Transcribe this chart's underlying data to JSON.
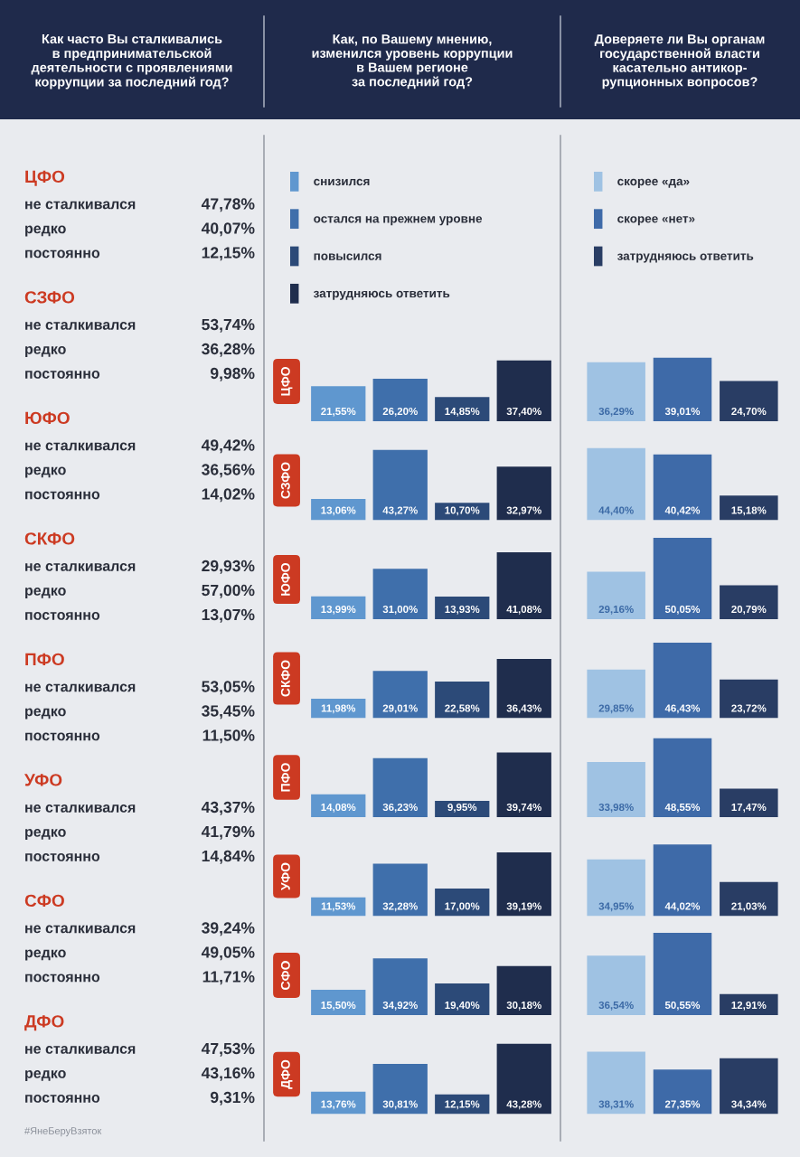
{
  "chart_data": [
    {
      "type": "other",
      "title": "Как часто Вы сталкивались\nв предпринимательской\nдеятельности с проявлениями\nкоррупции за последний год?",
      "categories": [
        "не сталкивался",
        "редко",
        "постоянно"
      ],
      "series": [
        {
          "name": "ЦФО",
          "values": [
            47.78,
            40.07,
            12.15
          ],
          "value_labels": [
            "47,78%",
            "40,07%",
            "12,15%"
          ]
        },
        {
          "name": "СЗФО",
          "values": [
            53.74,
            36.28,
            9.98
          ],
          "value_labels": [
            "53,74%",
            "36,28%",
            "9,98%"
          ]
        },
        {
          "name": "ЮФО",
          "values": [
            49.42,
            36.56,
            14.02
          ],
          "value_labels": [
            "49,42%",
            "36,56%",
            "14,02%"
          ]
        },
        {
          "name": "СКФО",
          "values": [
            29.93,
            57.0,
            13.07
          ],
          "value_labels": [
            "29,93%",
            "57,00%",
            "13,07%"
          ]
        },
        {
          "name": "ПФО",
          "values": [
            53.05,
            35.45,
            11.5
          ],
          "value_labels": [
            "53,05%",
            "35,45%",
            "11,50%"
          ]
        },
        {
          "name": "УФО",
          "values": [
            43.37,
            41.79,
            14.84
          ],
          "value_labels": [
            "43,37%",
            "41,79%",
            "14,84%"
          ]
        },
        {
          "name": "СФО",
          "values": [
            39.24,
            49.05,
            11.71
          ],
          "value_labels": [
            "39,24%",
            "49,05%",
            "11,71%"
          ]
        },
        {
          "name": "ДФО",
          "values": [
            47.53,
            43.16,
            9.31
          ],
          "value_labels": [
            "47,53%",
            "43,16%",
            "9,31%"
          ]
        }
      ],
      "annotations": [
        "#ЯнеБеруВзяток"
      ]
    },
    {
      "type": "bar",
      "title": "Как, по Вашему мнению,\nизменился уровень коррупции\nв Вашем регионе\nза последний год?",
      "legend": "top left",
      "tick_labels": false,
      "ylabel": "ЦФО",
      "categories": [
        null
      ],
      "series": [
        {
          "name": "снизился",
          "color": "#5f97cf",
          "values": [
            21.55
          ],
          "value_labels": [
            "21,55%"
          ]
        },
        {
          "name": "остался на прежнем уровне",
          "color": "#3f6fab",
          "values": [
            26.2
          ],
          "value_labels": [
            "26,20%"
          ]
        },
        {
          "name": "повысился",
          "color": "#2c4a78",
          "values": [
            14.85
          ],
          "value_labels": [
            "14,85%"
          ]
        },
        {
          "name": "затрудняюсь ответить",
          "color": "#1f2d4d",
          "values": [
            37.4
          ],
          "value_labels": [
            "37,40%"
          ]
        }
      ]
    },
    {
      "type": "bar",
      "tick_labels": false,
      "ylabel": "СЗФО",
      "categories": [
        null
      ],
      "series": [
        {
          "color": "#5f97cf",
          "values": [
            13.06
          ],
          "value_labels": [
            "13,06%"
          ]
        },
        {
          "color": "#3f6fab",
          "values": [
            43.27
          ],
          "value_labels": [
            "43,27%"
          ]
        },
        {
          "color": "#2c4a78",
          "values": [
            10.7
          ],
          "value_labels": [
            "10,70%"
          ]
        },
        {
          "color": "#1f2d4d",
          "values": [
            32.97
          ],
          "value_labels": [
            "32,97%"
          ]
        }
      ]
    },
    {
      "type": "bar",
      "tick_labels": false,
      "ylabel": "ЮФО",
      "categories": [
        null
      ],
      "series": [
        {
          "color": "#5f97cf",
          "values": [
            13.99
          ],
          "value_labels": [
            "13,99%"
          ]
        },
        {
          "color": "#3f6fab",
          "values": [
            31.0
          ],
          "value_labels": [
            "31,00%"
          ]
        },
        {
          "color": "#2c4a78",
          "values": [
            13.93
          ],
          "value_labels": [
            "13,93%"
          ]
        },
        {
          "color": "#1f2d4d",
          "values": [
            41.08
          ],
          "value_labels": [
            "41,08%"
          ]
        }
      ]
    },
    {
      "type": "bar",
      "tick_labels": false,
      "ylabel": "СКФО",
      "categories": [
        null
      ],
      "series": [
        {
          "color": "#5f97cf",
          "values": [
            11.98
          ],
          "value_labels": [
            "11,98%"
          ]
        },
        {
          "color": "#3f6fab",
          "values": [
            29.01
          ],
          "value_labels": [
            "29,01%"
          ]
        },
        {
          "color": "#2c4a78",
          "values": [
            22.58
          ],
          "value_labels": [
            "22,58%"
          ]
        },
        {
          "color": "#1f2d4d",
          "values": [
            36.43
          ],
          "value_labels": [
            "36,43%"
          ]
        }
      ]
    },
    {
      "type": "bar",
      "tick_labels": false,
      "ylabel": "ПФО",
      "categories": [
        null
      ],
      "series": [
        {
          "color": "#5f97cf",
          "values": [
            14.08
          ],
          "value_labels": [
            "14,08%"
          ]
        },
        {
          "color": "#3f6fab",
          "values": [
            36.23
          ],
          "value_labels": [
            "36,23%"
          ]
        },
        {
          "color": "#2c4a78",
          "values": [
            9.95
          ],
          "value_labels": [
            "9,95%"
          ]
        },
        {
          "color": "#1f2d4d",
          "values": [
            39.74
          ],
          "value_labels": [
            "39,74%"
          ]
        }
      ]
    },
    {
      "type": "bar",
      "tick_labels": false,
      "ylabel": "УФО",
      "categories": [
        null
      ],
      "series": [
        {
          "color": "#5f97cf",
          "values": [
            11.53
          ],
          "value_labels": [
            "11,53%"
          ]
        },
        {
          "color": "#3f6fab",
          "values": [
            32.28
          ],
          "value_labels": [
            "32,28%"
          ]
        },
        {
          "color": "#2c4a78",
          "values": [
            17.0
          ],
          "value_labels": [
            "17,00%"
          ]
        },
        {
          "color": "#1f2d4d",
          "values": [
            39.19
          ],
          "value_labels": [
            "39,19%"
          ]
        }
      ]
    },
    {
      "type": "bar",
      "tick_labels": false,
      "ylabel": "СФО",
      "categories": [
        null
      ],
      "series": [
        {
          "color": "#5f97cf",
          "values": [
            15.5
          ],
          "value_labels": [
            "15,50%"
          ]
        },
        {
          "color": "#3f6fab",
          "values": [
            34.92
          ],
          "value_labels": [
            "34,92%"
          ]
        },
        {
          "color": "#2c4a78",
          "values": [
            19.4
          ],
          "value_labels": [
            "19,40%"
          ]
        },
        {
          "color": "#1f2d4d",
          "values": [
            30.18
          ],
          "value_labels": [
            "30,18%"
          ]
        }
      ]
    },
    {
      "type": "bar",
      "tick_labels": false,
      "ylabel": "ДФО",
      "categories": [
        null
      ],
      "series": [
        {
          "color": "#5f97cf",
          "values": [
            13.76
          ],
          "value_labels": [
            "13,76%"
          ]
        },
        {
          "color": "#3f6fab",
          "values": [
            30.81
          ],
          "value_labels": [
            "30,81%"
          ]
        },
        {
          "color": "#2c4a78",
          "values": [
            12.15
          ],
          "value_labels": [
            "12,15%"
          ]
        },
        {
          "color": "#1f2d4d",
          "values": [
            43.28
          ],
          "value_labels": [
            "43,28%"
          ]
        }
      ]
    },
    {
      "type": "bar",
      "title": "Доверяете ли Вы органам\nгосударственной власти\nкасательно антикор-\nрупционных вопросов?",
      "legend": "top left",
      "tick_labels": false,
      "categories": [
        null
      ],
      "series": [
        {
          "name": "скорее «да»",
          "color": "#9fc2e3",
          "values": [
            36.29
          ],
          "value_labels": [
            "36,29%"
          ]
        },
        {
          "name": "скорее «нет»",
          "color": "#3e6aa8",
          "values": [
            39.01
          ],
          "value_labels": [
            "39,01%"
          ]
        },
        {
          "name": "затрудняюсь ответить",
          "color": "#293d64",
          "values": [
            24.7
          ],
          "value_labels": [
            "24,70%"
          ]
        }
      ]
    },
    {
      "type": "bar",
      "tick_labels": false,
      "categories": [
        null
      ],
      "series": [
        {
          "color": "#9fc2e3",
          "values": [
            44.4
          ],
          "value_labels": [
            "44,40%"
          ]
        },
        {
          "color": "#3e6aa8",
          "values": [
            40.42
          ],
          "value_labels": [
            "40,42%"
          ]
        },
        {
          "color": "#293d64",
          "values": [
            15.18
          ],
          "value_labels": [
            "15,18%"
          ]
        }
      ]
    },
    {
      "type": "bar",
      "tick_labels": false,
      "categories": [
        null
      ],
      "series": [
        {
          "color": "#9fc2e3",
          "values": [
            29.16
          ],
          "value_labels": [
            "29,16%"
          ]
        },
        {
          "color": "#3e6aa8",
          "values": [
            50.05
          ],
          "value_labels": [
            "50,05%"
          ]
        },
        {
          "color": "#293d64",
          "values": [
            20.79
          ],
          "value_labels": [
            "20,79%"
          ]
        }
      ]
    },
    {
      "type": "bar",
      "tick_labels": false,
      "categories": [
        null
      ],
      "series": [
        {
          "color": "#9fc2e3",
          "values": [
            29.85
          ],
          "value_labels": [
            "29,85%"
          ]
        },
        {
          "color": "#3e6aa8",
          "values": [
            46.43
          ],
          "value_labels": [
            "46,43%"
          ]
        },
        {
          "color": "#293d64",
          "values": [
            23.72
          ],
          "value_labels": [
            "23,72%"
          ]
        }
      ]
    },
    {
      "type": "bar",
      "tick_labels": false,
      "categories": [
        null
      ],
      "series": [
        {
          "color": "#9fc2e3",
          "values": [
            33.98
          ],
          "value_labels": [
            "33,98%"
          ]
        },
        {
          "color": "#3e6aa8",
          "values": [
            48.55
          ],
          "value_labels": [
            "48,55%"
          ]
        },
        {
          "color": "#293d64",
          "values": [
            17.47
          ],
          "value_labels": [
            "17,47%"
          ]
        }
      ]
    },
    {
      "type": "bar",
      "tick_labels": false,
      "categories": [
        null
      ],
      "series": [
        {
          "color": "#9fc2e3",
          "values": [
            34.95
          ],
          "value_labels": [
            "34,95%"
          ]
        },
        {
          "color": "#3e6aa8",
          "values": [
            44.02
          ],
          "value_labels": [
            "44,02%"
          ]
        },
        {
          "color": "#293d64",
          "values": [
            21.03
          ],
          "value_labels": [
            "21,03%"
          ]
        }
      ]
    },
    {
      "type": "bar",
      "tick_labels": false,
      "categories": [
        null
      ],
      "series": [
        {
          "color": "#9fc2e3",
          "values": [
            36.54
          ],
          "value_labels": [
            "36,54%"
          ]
        },
        {
          "color": "#3e6aa8",
          "values": [
            50.55
          ],
          "value_labels": [
            "50,55%"
          ]
        },
        {
          "color": "#293d64",
          "values": [
            12.91
          ],
          "value_labels": [
            "12,91%"
          ]
        }
      ]
    },
    {
      "type": "bar",
      "tick_labels": false,
      "categories": [
        null
      ],
      "series": [
        {
          "color": "#9fc2e3",
          "values": [
            38.31
          ],
          "value_labels": [
            "38,31%"
          ]
        },
        {
          "color": "#3e6aa8",
          "values": [
            27.35
          ],
          "value_labels": [
            "27,35%"
          ]
        },
        {
          "color": "#293d64",
          "values": [
            34.34
          ],
          "value_labels": [
            "34,34%"
          ]
        }
      ]
    }
  ]
}
